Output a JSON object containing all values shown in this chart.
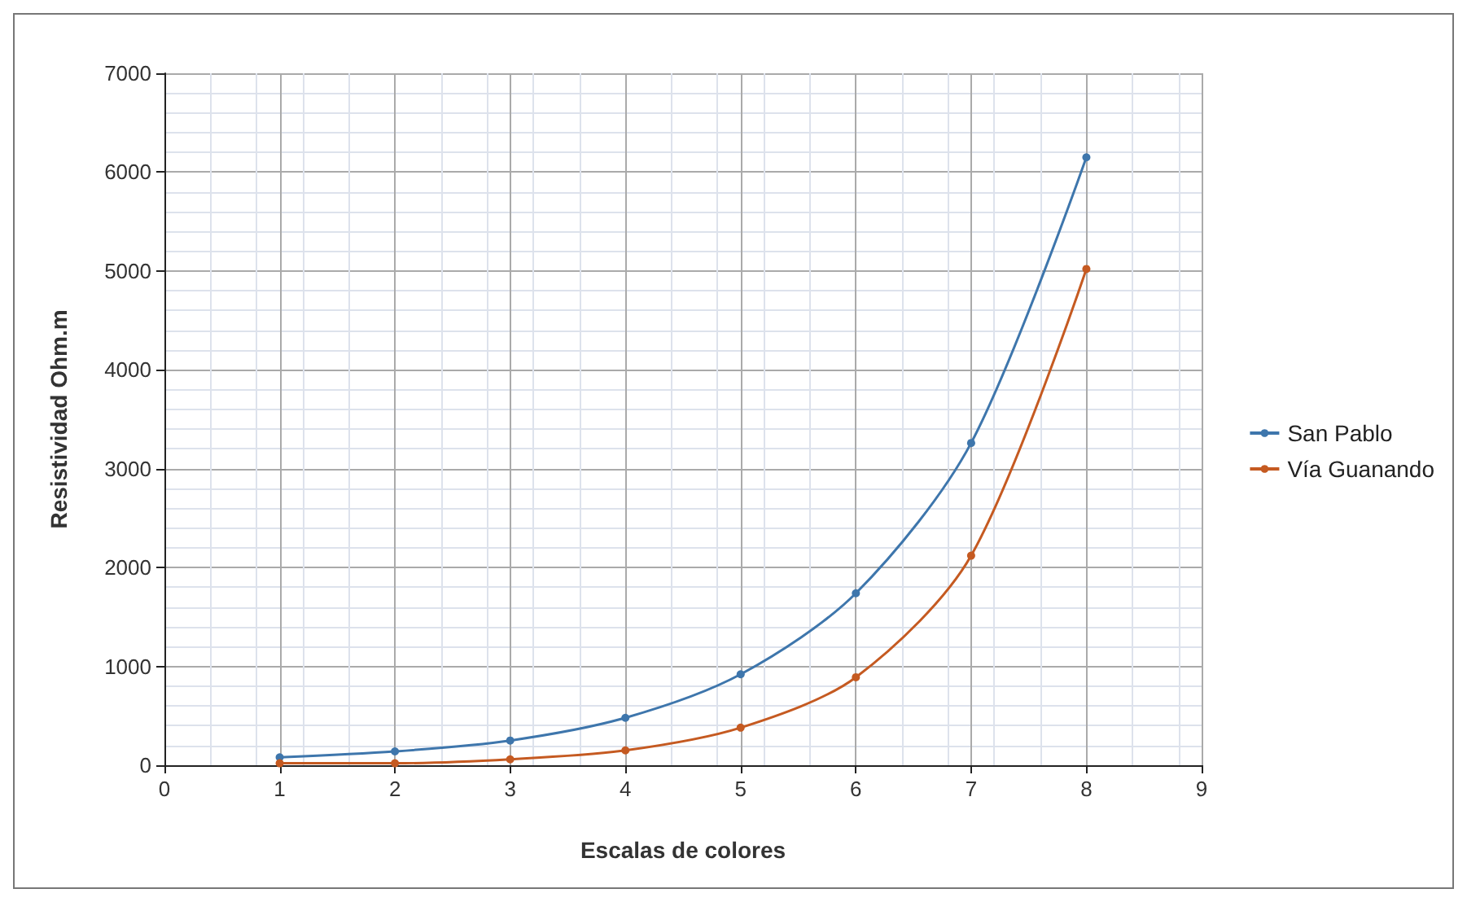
{
  "chart_data": {
    "type": "line",
    "xlabel": "Escalas de colores",
    "ylabel": "Resistividad Ohm.m",
    "x": [
      1,
      2,
      3,
      4,
      5,
      6,
      7,
      8
    ],
    "series": [
      {
        "name": "San Pablo",
        "color": "#3e76ac",
        "values": [
          80,
          140,
          250,
          480,
          920,
          1740,
          3260,
          6150
        ]
      },
      {
        "name": "Vía Guanando",
        "color": "#c55a21",
        "values": [
          20,
          20,
          60,
          150,
          380,
          890,
          2120,
          5020
        ]
      }
    ],
    "xlim": [
      0,
      9
    ],
    "xticks": [
      0,
      1,
      2,
      3,
      4,
      5,
      6,
      7,
      8,
      9
    ],
    "ylim": [
      0,
      7000
    ],
    "yticks": [
      0,
      1000,
      2000,
      3000,
      4000,
      5000,
      6000,
      7000
    ],
    "grid": true,
    "legend": "right",
    "marker": "circle",
    "line_style": "solid"
  }
}
